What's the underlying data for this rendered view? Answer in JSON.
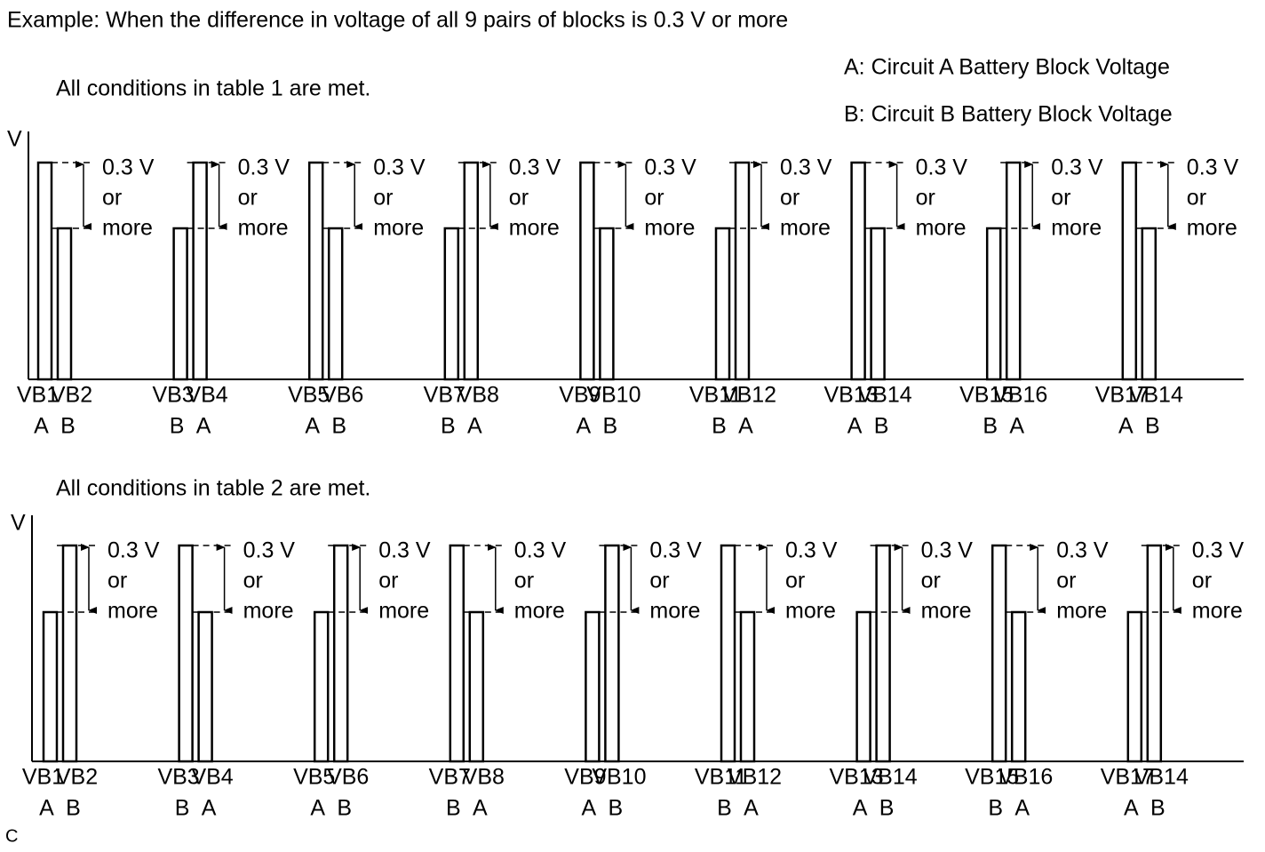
{
  "title": "Example: When the difference in voltage of all 9 pairs of blocks is 0.3 V or more",
  "legend": [
    "A: Circuit A Battery Block Voltage",
    "B: Circuit B Battery Block Voltage"
  ],
  "axis_label": "V",
  "annotation": [
    "0.3 V",
    "or",
    "more"
  ],
  "panels": [
    {
      "caption": "All conditions in table 1 are met.",
      "pairs": [
        {
          "blocks": [
            "VB1",
            "VB2"
          ],
          "circuits": [
            "A",
            "B"
          ]
        },
        {
          "blocks": [
            "VB3",
            "VB4"
          ],
          "circuits": [
            "B",
            "A"
          ]
        },
        {
          "blocks": [
            "VB5",
            "VB6"
          ],
          "circuits": [
            "A",
            "B"
          ]
        },
        {
          "blocks": [
            "VB7",
            "VB8"
          ],
          "circuits": [
            "B",
            "A"
          ]
        },
        {
          "blocks": [
            "VB9",
            "VB10"
          ],
          "circuits": [
            "A",
            "B"
          ]
        },
        {
          "blocks": [
            "VB11",
            "VB12"
          ],
          "circuits": [
            "B",
            "A"
          ]
        },
        {
          "blocks": [
            "VB13",
            "VB14"
          ],
          "circuits": [
            "A",
            "B"
          ]
        },
        {
          "blocks": [
            "VB15",
            "VB16"
          ],
          "circuits": [
            "B",
            "A"
          ]
        },
        {
          "blocks": [
            "VB17",
            "VB14"
          ],
          "circuits": [
            "A",
            "B"
          ]
        }
      ]
    },
    {
      "caption": "All conditions in table 2 are met.",
      "pairs": [
        {
          "blocks": [
            "VB1",
            "VB2"
          ],
          "circuits": [
            "A",
            "B"
          ]
        },
        {
          "blocks": [
            "VB3",
            "VB4"
          ],
          "circuits": [
            "B",
            "A"
          ]
        },
        {
          "blocks": [
            "VB5",
            "VB6"
          ],
          "circuits": [
            "A",
            "B"
          ]
        },
        {
          "blocks": [
            "VB7",
            "VB8"
          ],
          "circuits": [
            "B",
            "A"
          ]
        },
        {
          "blocks": [
            "VB9",
            "VB10"
          ],
          "circuits": [
            "A",
            "B"
          ]
        },
        {
          "blocks": [
            "VB11",
            "VB12"
          ],
          "circuits": [
            "B",
            "A"
          ]
        },
        {
          "blocks": [
            "VB13",
            "VB14"
          ],
          "circuits": [
            "A",
            "B"
          ]
        },
        {
          "blocks": [
            "VB15",
            "VB16"
          ],
          "circuits": [
            "B",
            "A"
          ]
        },
        {
          "blocks": [
            "VB17",
            "VB14"
          ],
          "circuits": [
            "A",
            "B"
          ]
        }
      ]
    }
  ],
  "footer": "C"
}
